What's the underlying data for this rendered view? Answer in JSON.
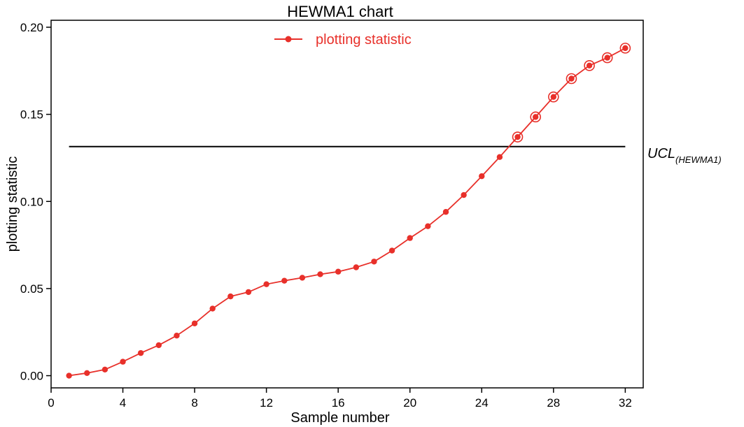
{
  "chart_data": {
    "type": "line",
    "title": "HEWMA1 chart",
    "xlabel": "Sample number",
    "ylabel": "plotting statistic",
    "xlim": [
      0,
      33
    ],
    "ylim": [
      -0.007,
      0.204
    ],
    "xticks": [
      0,
      4,
      8,
      12,
      16,
      20,
      24,
      28,
      32
    ],
    "xtick_labels": [
      "0",
      "4",
      "8",
      "12",
      "16",
      "20",
      "24",
      "28",
      "32"
    ],
    "yticks": [
      0.0,
      0.05,
      0.1,
      0.15,
      0.2
    ],
    "ytick_labels": [
      "0.00",
      "0.05",
      "0.10",
      "0.15",
      "0.20"
    ],
    "grid": false,
    "legend_position": "top-center",
    "series": [
      {
        "name": "plotting statistic",
        "color": "#e8302a",
        "x": [
          1,
          2,
          3,
          4,
          5,
          6,
          7,
          8,
          9,
          10,
          11,
          12,
          13,
          14,
          15,
          16,
          17,
          18,
          19,
          20,
          21,
          22,
          23,
          24,
          25,
          26,
          27,
          28,
          29,
          30,
          31,
          32
        ],
        "y": [
          0.0,
          0.0015,
          0.0035,
          0.008,
          0.013,
          0.0175,
          0.023,
          0.03,
          0.0385,
          0.0455,
          0.048,
          0.0525,
          0.0545,
          0.0562,
          0.0582,
          0.0597,
          0.0622,
          0.0655,
          0.0718,
          0.079,
          0.0858,
          0.094,
          0.1037,
          0.1145,
          0.1255,
          0.137,
          0.1485,
          0.16,
          0.1705,
          0.178,
          0.1825,
          0.188
        ],
        "out_of_control_from_x": 26
      }
    ],
    "reference_lines": [
      {
        "label": "UCL",
        "label_subscript": "(HEWMA1)",
        "y": 0.1315,
        "x_range": [
          1,
          32
        ],
        "color": "#000000"
      }
    ]
  }
}
